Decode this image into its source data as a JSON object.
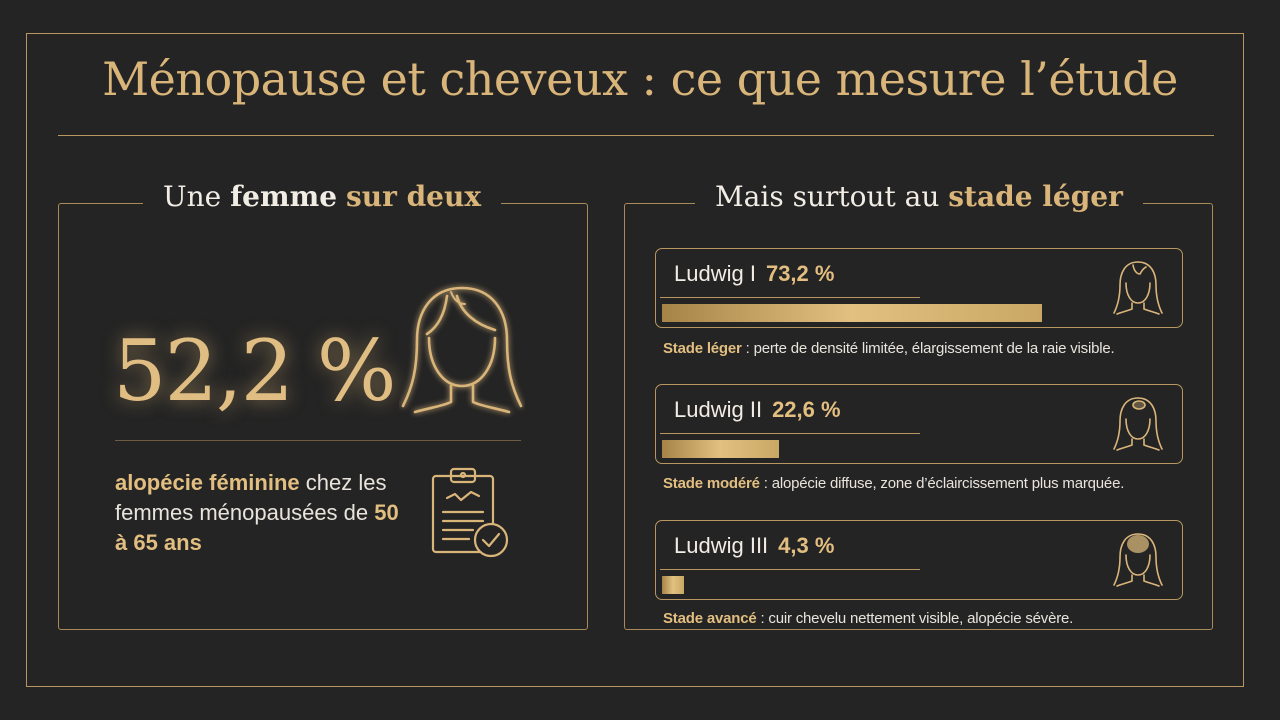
{
  "title": "Ménopause et cheveux : ce que mesure l’étude",
  "left": {
    "heading": {
      "a": "Une ",
      "b": "femme",
      "c": " ",
      "d": "sur deux"
    },
    "percent": "52,2 %",
    "desc": {
      "gold1": "alopécie féminine",
      "t1": " chez les femmes ménopausées de ",
      "gold2": "50 à 65 ans"
    }
  },
  "right": {
    "heading": {
      "a": "Mais surtout au ",
      "b": "stade léger"
    },
    "items": [
      {
        "name": "Ludwig I",
        "percent": "73,2 %",
        "value": 73.2,
        "stage_label": "Stade léger",
        "stage_text": " : perte de densité limitée, élargissement de la raie visible."
      },
      {
        "name": "Ludwig II",
        "percent": "22,6 %",
        "value": 22.6,
        "stage_label": "Stade modéré",
        "stage_text": " : alopécie diffuse, zone d’éclaircissement plus marquée."
      },
      {
        "name": "Ludwig III",
        "percent": "4,3 %",
        "value": 4.3,
        "stage_label": "Stade avancé",
        "stage_text": " : cuir chevelu nettement visible, alopécie sévère."
      }
    ]
  },
  "colors": {
    "background": "#242424",
    "gold": "#d9b57a",
    "text": "#f1ece4"
  },
  "icons": [
    "woman-hair-icon",
    "clipboard-check-icon"
  ]
}
